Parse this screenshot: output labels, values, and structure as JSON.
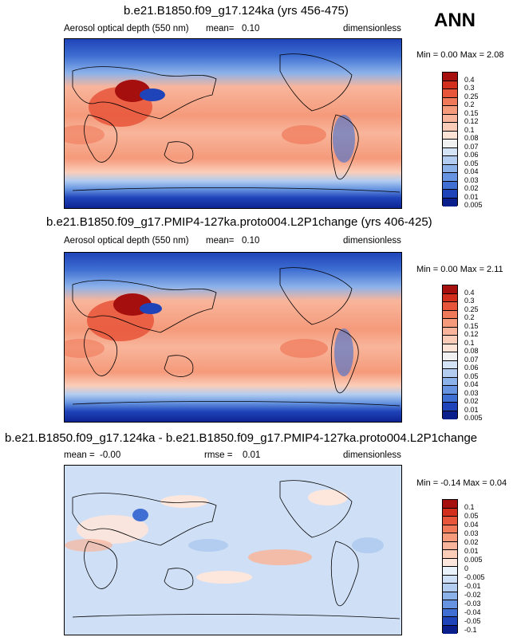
{
  "season": "ANN",
  "panels": [
    {
      "title": "b.e21.B1850.f09_g17.124ka (yrs 456-475)",
      "variable": "Aerosol optical depth (550 nm)",
      "mean_label": "mean=",
      "mean_value": "0.10",
      "units": "dimensionless",
      "minmax": "Min =   0.00 Max =   2.08",
      "levels": [
        "0.4",
        "0.3",
        "0.25",
        "0.2",
        "0.15",
        "0.12",
        "0.1",
        "0.08",
        "0.07",
        "0.06",
        "0.05",
        "0.04",
        "0.03",
        "0.02",
        "0.01",
        "0.005"
      ],
      "colors": [
        "#a50f0d",
        "#d2301c",
        "#e7553a",
        "#f0795a",
        "#f59a7b",
        "#f8b59b",
        "#fbcdb9",
        "#fde2d6",
        "#f2f1f1",
        "#d4e3f6",
        "#b2cdf0",
        "#8cb2ea",
        "#6694e0",
        "#3f6fd2",
        "#1f44b9",
        "#0b1f8c"
      ]
    },
    {
      "title": "b.e21.B1850.f09_g17.PMIP4-127ka.proto004.L2P1change (yrs 406-425)",
      "variable": "Aerosol optical depth (550 nm)",
      "mean_label": "mean=",
      "mean_value": "0.10",
      "units": "dimensionless",
      "minmax": "Min =   0.00 Max =   2.11",
      "levels": [
        "0.4",
        "0.3",
        "0.25",
        "0.2",
        "0.15",
        "0.12",
        "0.1",
        "0.08",
        "0.07",
        "0.06",
        "0.05",
        "0.04",
        "0.03",
        "0.02",
        "0.01",
        "0.005"
      ],
      "colors": [
        "#a50f0d",
        "#d2301c",
        "#e7553a",
        "#f0795a",
        "#f59a7b",
        "#f8b59b",
        "#fbcdb9",
        "#fde2d6",
        "#f2f1f1",
        "#d4e3f6",
        "#b2cdf0",
        "#8cb2ea",
        "#6694e0",
        "#3f6fd2",
        "#1f44b9",
        "#0b1f8c"
      ]
    },
    {
      "title": "b.e21.B1850.f09_g17.124ka - b.e21.B1850.f09_g17.PMIP4-127ka.proto004.L2P1change",
      "mean_label": "mean =",
      "mean_value": "-0.00",
      "rmse_label": "rmse =",
      "rmse_value": "0.01",
      "units": "dimensionless",
      "minmax": "Min = -0.14 Max =   0.04",
      "levels": [
        "0.1",
        "0.05",
        "0.04",
        "0.03",
        "0.02",
        "0.01",
        "0.005",
        "0",
        "-0.005",
        "-0.01",
        "-0.02",
        "-0.03",
        "-0.04",
        "-0.05",
        "-0.1"
      ],
      "colors": [
        "#a50f0d",
        "#d2301c",
        "#e7553a",
        "#f0795a",
        "#f59a7b",
        "#f8b59b",
        "#fbcdb9",
        "#fde6dc",
        "#e9f1fb",
        "#cfe0f6",
        "#b2cdf0",
        "#8cb2ea",
        "#6694e0",
        "#3f6fd2",
        "#1f44b9",
        "#0b1f8c"
      ]
    }
  ]
}
